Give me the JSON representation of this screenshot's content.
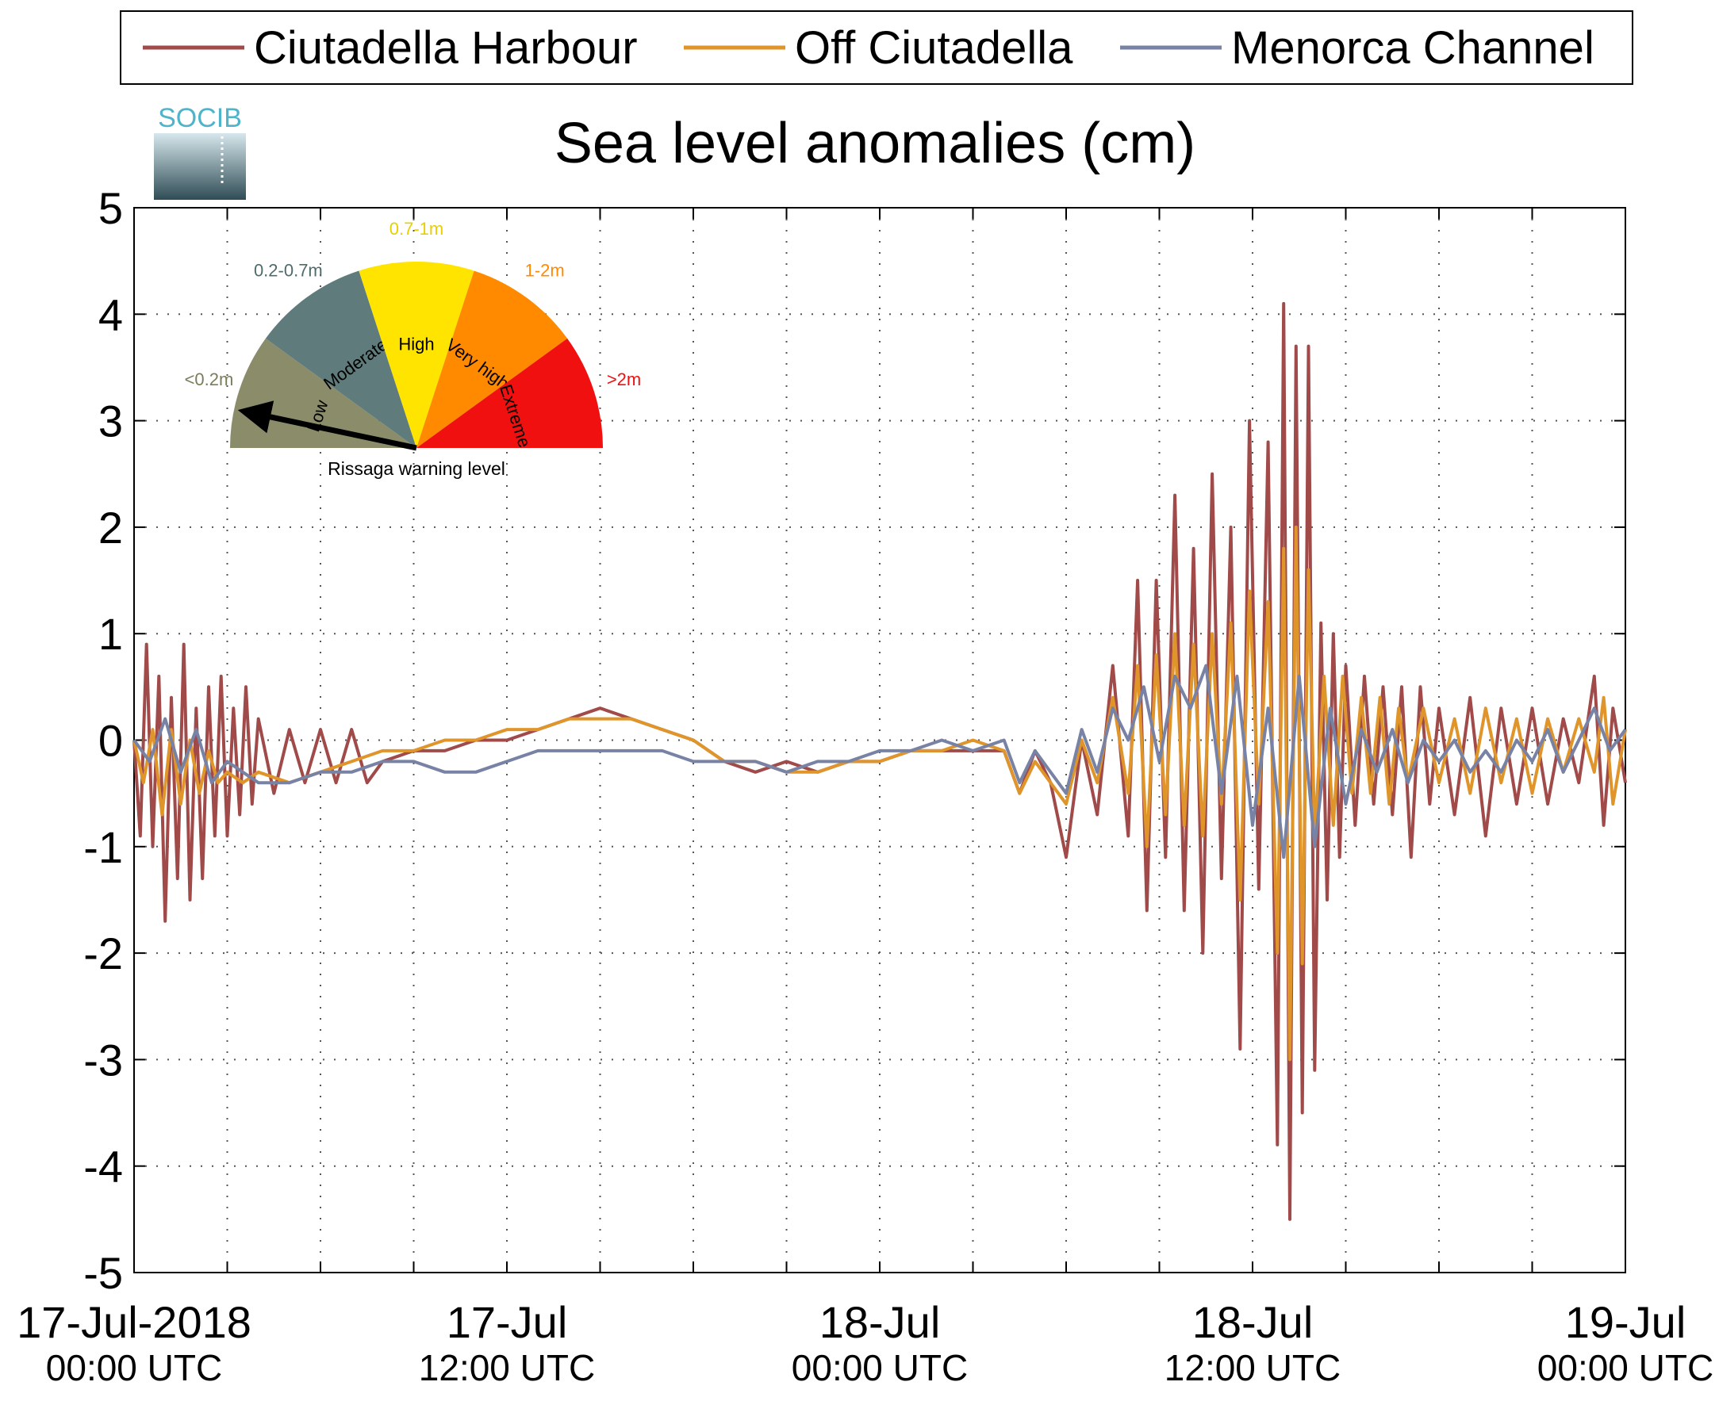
{
  "chart_data": {
    "type": "line",
    "title": "Sea level anomalies (cm)",
    "xlabel": "",
    "ylabel": "",
    "ylim": [
      -5,
      5
    ],
    "yticks": [
      -5,
      -4,
      -3,
      -2,
      -1,
      0,
      1,
      2,
      3,
      4,
      5
    ],
    "xlim_hours": [
      0,
      48
    ],
    "x_unit": "hours since 17-Jul-2018 00:00 UTC",
    "xtick_labels": [
      {
        "hour": 0,
        "date": "17-Jul-2018",
        "time": "00:00 UTC"
      },
      {
        "hour": 12,
        "date": "17-Jul",
        "time": "12:00 UTC"
      },
      {
        "hour": 24,
        "date": "18-Jul",
        "time": "00:00 UTC"
      },
      {
        "hour": 36,
        "date": "18-Jul",
        "time": "12:00 UTC"
      },
      {
        "hour": 48,
        "date": "19-Jul",
        "time": "00:00 UTC"
      }
    ],
    "xgrid_hours": [
      3,
      6,
      9,
      12,
      15,
      18,
      21,
      24,
      27,
      30,
      33,
      36,
      39,
      42,
      45
    ],
    "grid": true,
    "legend_position": "top",
    "series": [
      {
        "name": "Ciutadella Harbour",
        "color": "#a04a4a",
        "x": [
          0,
          0.2,
          0.4,
          0.6,
          0.8,
          1.0,
          1.2,
          1.4,
          1.6,
          1.8,
          2.0,
          2.2,
          2.4,
          2.6,
          2.8,
          3.0,
          3.2,
          3.4,
          3.6,
          3.8,
          4.0,
          4.5,
          5,
          5.5,
          6,
          6.5,
          7,
          7.5,
          8,
          9,
          10,
          11,
          12,
          13,
          14,
          15,
          16,
          17,
          18,
          19,
          20,
          21,
          22,
          23,
          24,
          25,
          26,
          27,
          28,
          28.5,
          29,
          29.5,
          30,
          30.5,
          31,
          31.5,
          32,
          32.3,
          32.6,
          32.9,
          33.2,
          33.5,
          33.8,
          34.1,
          34.4,
          34.7,
          35.0,
          35.3,
          35.6,
          35.9,
          36.2,
          36.5,
          36.8,
          37.0,
          37.2,
          37.4,
          37.6,
          37.8,
          38.0,
          38.2,
          38.4,
          38.6,
          38.8,
          39.0,
          39.3,
          39.6,
          39.9,
          40.2,
          40.5,
          40.8,
          41.1,
          41.4,
          41.7,
          42.0,
          42.5,
          43,
          43.5,
          44,
          44.5,
          45,
          45.5,
          46,
          46.5,
          47,
          47.3,
          47.6,
          48
        ],
        "y": [
          0.0,
          -0.9,
          0.9,
          -1.0,
          0.6,
          -1.7,
          0.4,
          -1.3,
          0.9,
          -1.5,
          0.3,
          -1.3,
          0.5,
          -0.9,
          0.6,
          -0.9,
          0.3,
          -0.7,
          0.5,
          -0.6,
          0.2,
          -0.5,
          0.1,
          -0.4,
          0.1,
          -0.4,
          0.1,
          -0.4,
          -0.2,
          -0.1,
          -0.1,
          0.0,
          0.0,
          0.1,
          0.2,
          0.3,
          0.2,
          0.1,
          0.0,
          -0.2,
          -0.3,
          -0.2,
          -0.3,
          -0.2,
          -0.2,
          -0.1,
          -0.1,
          -0.1,
          -0.1,
          -0.5,
          -0.1,
          -0.4,
          -1.1,
          0.0,
          -0.7,
          0.7,
          -0.9,
          1.5,
          -1.6,
          1.5,
          -1.1,
          2.3,
          -1.6,
          1.8,
          -2.0,
          2.5,
          -1.3,
          2.0,
          -2.9,
          3.0,
          -1.4,
          2.8,
          -3.8,
          4.1,
          -4.5,
          3.7,
          -3.5,
          3.7,
          -3.1,
          1.1,
          -1.5,
          1.0,
          -1.1,
          0.7,
          -0.8,
          0.6,
          -0.6,
          0.5,
          -0.7,
          0.5,
          -1.1,
          0.5,
          -0.6,
          0.3,
          -0.7,
          0.4,
          -0.9,
          0.3,
          -0.6,
          0.3,
          -0.6,
          0.2,
          -0.4,
          0.6,
          -0.8,
          0.3,
          -0.4
        ]
      },
      {
        "name": "Off Ciutadella",
        "color": "#e0952a",
        "x": [
          0,
          0.3,
          0.6,
          0.9,
          1.2,
          1.5,
          1.8,
          2.1,
          2.4,
          2.7,
          3.0,
          3.5,
          4,
          5,
          6,
          7,
          8,
          9,
          10,
          11,
          12,
          13,
          14,
          15,
          16,
          17,
          18,
          19,
          20,
          21,
          22,
          23,
          24,
          25,
          26,
          27,
          28,
          28.5,
          29,
          29.5,
          30,
          30.5,
          31,
          31.5,
          32,
          32.3,
          32.6,
          32.9,
          33.2,
          33.5,
          33.8,
          34.1,
          34.4,
          34.7,
          35.0,
          35.3,
          35.6,
          35.9,
          36.2,
          36.5,
          36.8,
          37.0,
          37.2,
          37.4,
          37.6,
          37.8,
          38.0,
          38.3,
          38.6,
          38.9,
          39.2,
          39.5,
          39.8,
          40.1,
          40.4,
          40.7,
          41.0,
          41.5,
          42,
          42.5,
          43,
          43.5,
          44,
          44.5,
          45,
          45.5,
          46,
          46.5,
          47,
          47.3,
          47.6,
          48
        ],
        "y": [
          0.0,
          -0.4,
          0.1,
          -0.7,
          0.1,
          -0.6,
          0.0,
          -0.5,
          -0.1,
          -0.4,
          -0.3,
          -0.4,
          -0.3,
          -0.4,
          -0.3,
          -0.2,
          -0.1,
          -0.1,
          0.0,
          0.0,
          0.1,
          0.1,
          0.2,
          0.2,
          0.2,
          0.1,
          0.0,
          -0.2,
          -0.2,
          -0.3,
          -0.3,
          -0.2,
          -0.2,
          -0.1,
          -0.1,
          0.0,
          -0.1,
          -0.5,
          -0.2,
          -0.4,
          -0.6,
          0.0,
          -0.4,
          0.4,
          -0.5,
          0.7,
          -1.0,
          0.8,
          -0.7,
          1.0,
          -0.8,
          0.9,
          -0.9,
          1.0,
          -0.6,
          1.1,
          -1.5,
          1.4,
          -0.6,
          1.3,
          -2.0,
          1.8,
          -3.0,
          2.0,
          -2.1,
          1.6,
          -0.9,
          0.6,
          -0.8,
          0.6,
          -0.5,
          0.4,
          -0.5,
          0.4,
          -0.6,
          0.3,
          -0.4,
          0.3,
          -0.4,
          0.2,
          -0.5,
          0.3,
          -0.4,
          0.2,
          -0.5,
          0.2,
          -0.3,
          0.2,
          -0.3,
          0.4,
          -0.6,
          0.1
        ]
      },
      {
        "name": "Menorca Channel",
        "color": "#7882a4",
        "x": [
          0,
          0.5,
          1,
          1.5,
          2,
          2.5,
          3,
          3.5,
          4,
          5,
          6,
          7,
          8,
          9,
          10,
          11,
          12,
          13,
          14,
          15,
          16,
          17,
          18,
          19,
          20,
          21,
          22,
          23,
          24,
          25,
          26,
          27,
          28,
          28.5,
          29,
          29.5,
          30,
          30.5,
          31,
          31.5,
          32,
          32.5,
          33,
          33.5,
          34,
          34.5,
          35,
          35.5,
          36,
          36.5,
          37,
          37.5,
          38,
          38.5,
          39,
          39.5,
          40,
          40.5,
          41,
          41.5,
          42,
          42.5,
          43,
          43.5,
          44,
          44.5,
          45,
          45.5,
          46,
          46.5,
          47,
          47.5,
          48
        ],
        "y": [
          0.0,
          -0.2,
          0.2,
          -0.3,
          0.1,
          -0.4,
          -0.2,
          -0.3,
          -0.4,
          -0.4,
          -0.3,
          -0.3,
          -0.2,
          -0.2,
          -0.3,
          -0.3,
          -0.2,
          -0.1,
          -0.1,
          -0.1,
          -0.1,
          -0.1,
          -0.2,
          -0.2,
          -0.2,
          -0.3,
          -0.2,
          -0.2,
          -0.1,
          -0.1,
          0.0,
          -0.1,
          0.0,
          -0.4,
          -0.1,
          -0.3,
          -0.5,
          0.1,
          -0.3,
          0.3,
          0.0,
          0.5,
          -0.2,
          0.6,
          0.3,
          0.7,
          -0.5,
          0.6,
          -0.8,
          0.3,
          -1.1,
          0.6,
          -1.0,
          0.3,
          -0.6,
          0.1,
          -0.3,
          0.1,
          -0.4,
          0.0,
          -0.2,
          0.0,
          -0.3,
          -0.1,
          -0.3,
          0.0,
          -0.2,
          0.1,
          -0.3,
          0.0,
          0.3,
          -0.1,
          0.1
        ]
      }
    ]
  },
  "logo": {
    "text": "SOCIB",
    "colors": {
      "text": "#4fb3c9",
      "top": "#d6e7ec",
      "bottom": "#2f4c56"
    }
  },
  "gauge": {
    "caption": "Rissaga warning level",
    "level": "Low",
    "sectors": [
      {
        "label": "Low",
        "range": "<0.2m",
        "color": "#8a8c6a",
        "range_color": "#7b7d5a"
      },
      {
        "label": "Moderate",
        "range": "0.2-0.7m",
        "color": "#5f7b7b",
        "range_color": "#4f6b6b"
      },
      {
        "label": "High",
        "range": "0.7-1m",
        "color": "#ffe400",
        "range_color": "#e8cf00"
      },
      {
        "label": "Very high",
        "range": "1-2m",
        "color": "#ff8a00",
        "range_color": "#ff8a00"
      },
      {
        "label": "Extreme",
        "range": ">2m",
        "color": "#f01010",
        "range_color": "#f01010"
      }
    ]
  }
}
